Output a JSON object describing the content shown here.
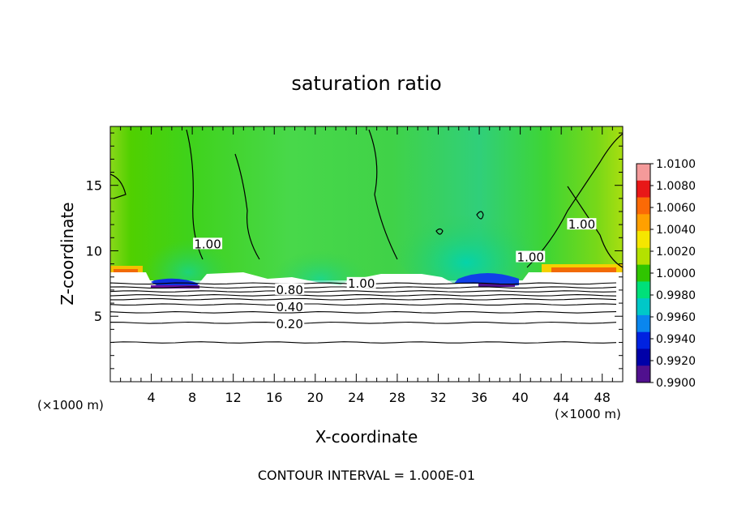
{
  "chart_data": {
    "type": "heatmap",
    "title": "saturation ratio",
    "xlabel": "X-coordinate",
    "ylabel": "Z-coordinate",
    "x_unit_left": "(×1000 m)",
    "x_unit_right": "(×1000 m)",
    "xlim": [
      0,
      50
    ],
    "ylim": [
      0,
      19.5
    ],
    "x_ticks": [
      4,
      8,
      12,
      16,
      20,
      24,
      28,
      32,
      36,
      40,
      44,
      48
    ],
    "y_ticks": [
      5,
      10,
      15
    ],
    "footer": "CONTOUR INTERVAL = 1.000E-01",
    "contour_labels": [
      {
        "text": "0.20",
        "x": 17.5,
        "y": 4.4
      },
      {
        "text": "0.40",
        "x": 17.5,
        "y": 5.7
      },
      {
        "text": "0.80",
        "x": 17.5,
        "y": 7.0
      },
      {
        "text": "1.00",
        "x": 24.5,
        "y": 7.5
      },
      {
        "text": "1.00",
        "x": 9.5,
        "y": 10.5
      },
      {
        "text": "1.00",
        "x": 41.0,
        "y": 9.5
      },
      {
        "text": "1.00",
        "x": 46.0,
        "y": 12.0
      }
    ],
    "contour_levels_below_cloud": [
      3.0,
      4.5,
      5.3,
      5.9,
      6.3,
      6.6,
      6.9,
      7.2,
      7.5
    ],
    "colorbar": {
      "labels": [
        "1.0100",
        "1.0080",
        "1.0060",
        "1.0040",
        "1.0020",
        "1.0000",
        "0.9980",
        "0.9960",
        "0.9940",
        "0.9920",
        "0.9900"
      ],
      "colors": [
        "#f49a9a",
        "#e81818",
        "#fb6a06",
        "#ffa000",
        "#f5e600",
        "#b4e100",
        "#30c500",
        "#00e07a",
        "#00c8c8",
        "#0a86ee",
        "#0022e0",
        "#0000a8",
        "#50108e"
      ]
    }
  }
}
